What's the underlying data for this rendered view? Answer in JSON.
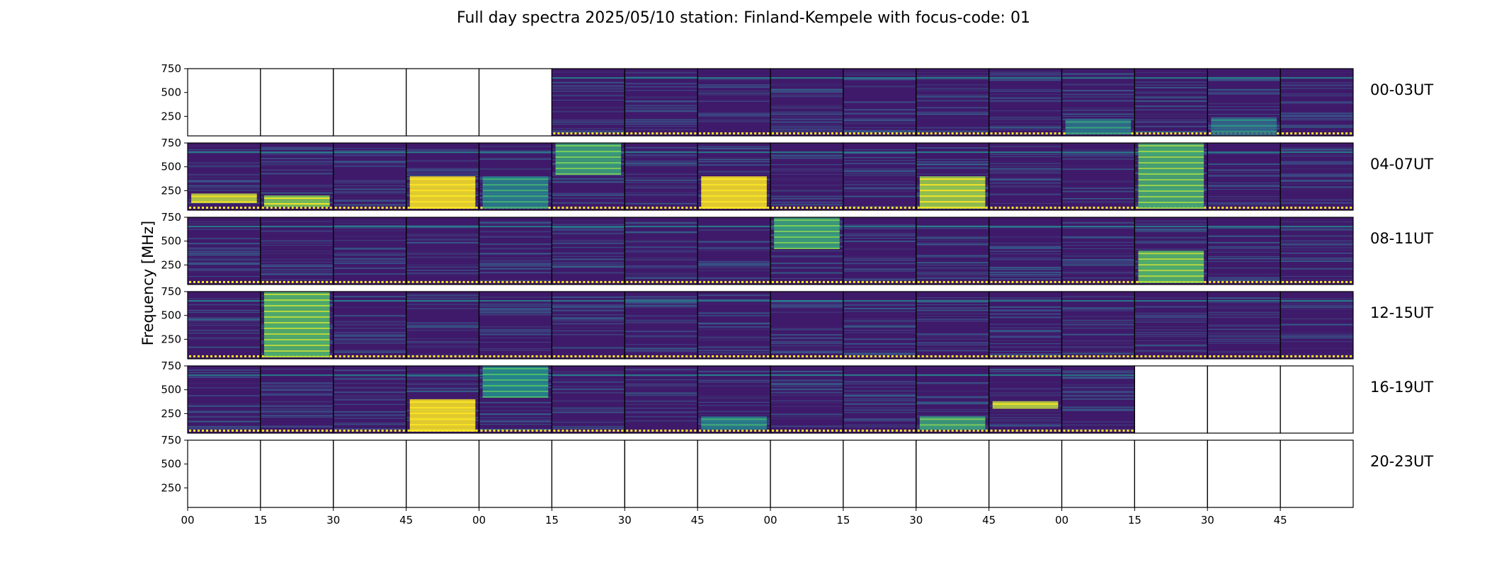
{
  "chart_data": {
    "type": "heatmap",
    "title": "Full day spectra 2025/05/10 station: Finland-Kempele with focus-code: 01",
    "ylabel": "Frequency [MHz]",
    "xlabel": "",
    "ylim": [
      45,
      750
    ],
    "yticks": [
      "250",
      "500",
      "750"
    ],
    "yticks_values": [
      250,
      500,
      750
    ],
    "xticks": [
      "00",
      "15",
      "30",
      "45",
      "00",
      "15",
      "30",
      "45",
      "00",
      "15",
      "30",
      "45",
      "00",
      "15",
      "30",
      "45"
    ],
    "colormap": "viridis",
    "rows": [
      {
        "label": "00-03UT",
        "panels_with_data": [
          5,
          6,
          7,
          8,
          9,
          10,
          11,
          12,
          13,
          14,
          15
        ],
        "events": [
          {
            "panel": 14,
            "fmin": 45,
            "fmax": 240,
            "level": 0.35
          },
          {
            "panel": 12,
            "fmin": 60,
            "fmax": 220,
            "level": 0.4
          }
        ]
      },
      {
        "label": "04-07UT",
        "panels_with_data": [
          0,
          1,
          2,
          3,
          4,
          5,
          6,
          7,
          8,
          9,
          10,
          11,
          12,
          13,
          14,
          15
        ],
        "events": [
          {
            "panel": 0,
            "fmin": 120,
            "fmax": 220,
            "level": 0.9
          },
          {
            "panel": 1,
            "fmin": 80,
            "fmax": 200,
            "level": 0.8
          },
          {
            "panel": 3,
            "fmin": 60,
            "fmax": 400,
            "level": 1.0
          },
          {
            "panel": 4,
            "fmin": 60,
            "fmax": 400,
            "level": 0.45
          },
          {
            "panel": 5,
            "fmin": 420,
            "fmax": 750,
            "level": 0.6
          },
          {
            "panel": 7,
            "fmin": 60,
            "fmax": 400,
            "level": 1.0
          },
          {
            "panel": 10,
            "fmin": 60,
            "fmax": 400,
            "level": 0.85
          },
          {
            "panel": 13,
            "fmin": 60,
            "fmax": 750,
            "level": 0.65
          }
        ]
      },
      {
        "label": "08-11UT",
        "panels_with_data": [
          0,
          1,
          2,
          3,
          4,
          5,
          6,
          7,
          8,
          9,
          10,
          11,
          12,
          13,
          14,
          15
        ],
        "events": [
          {
            "panel": 8,
            "fmin": 420,
            "fmax": 750,
            "level": 0.6
          },
          {
            "panel": 13,
            "fmin": 60,
            "fmax": 400,
            "level": 0.7
          }
        ]
      },
      {
        "label": "12-15UT",
        "panels_with_data": [
          0,
          1,
          2,
          3,
          4,
          5,
          6,
          7,
          8,
          9,
          10,
          11,
          12,
          13,
          14,
          15
        ],
        "events": [
          {
            "panel": 1,
            "fmin": 60,
            "fmax": 750,
            "level": 0.7
          }
        ]
      },
      {
        "label": "16-19UT",
        "panels_with_data": [
          0,
          1,
          2,
          3,
          4,
          5,
          6,
          7,
          8,
          9,
          10,
          11,
          12
        ],
        "events": [
          {
            "panel": 3,
            "fmin": 60,
            "fmax": 400,
            "level": 1.0
          },
          {
            "panel": 4,
            "fmin": 420,
            "fmax": 750,
            "level": 0.5
          },
          {
            "panel": 7,
            "fmin": 80,
            "fmax": 220,
            "level": 0.45
          },
          {
            "panel": 10,
            "fmin": 80,
            "fmax": 220,
            "level": 0.6
          },
          {
            "panel": 11,
            "fmin": 300,
            "fmax": 380,
            "level": 0.9
          }
        ]
      },
      {
        "label": "20-23UT",
        "panels_with_data": [],
        "events": []
      }
    ]
  }
}
